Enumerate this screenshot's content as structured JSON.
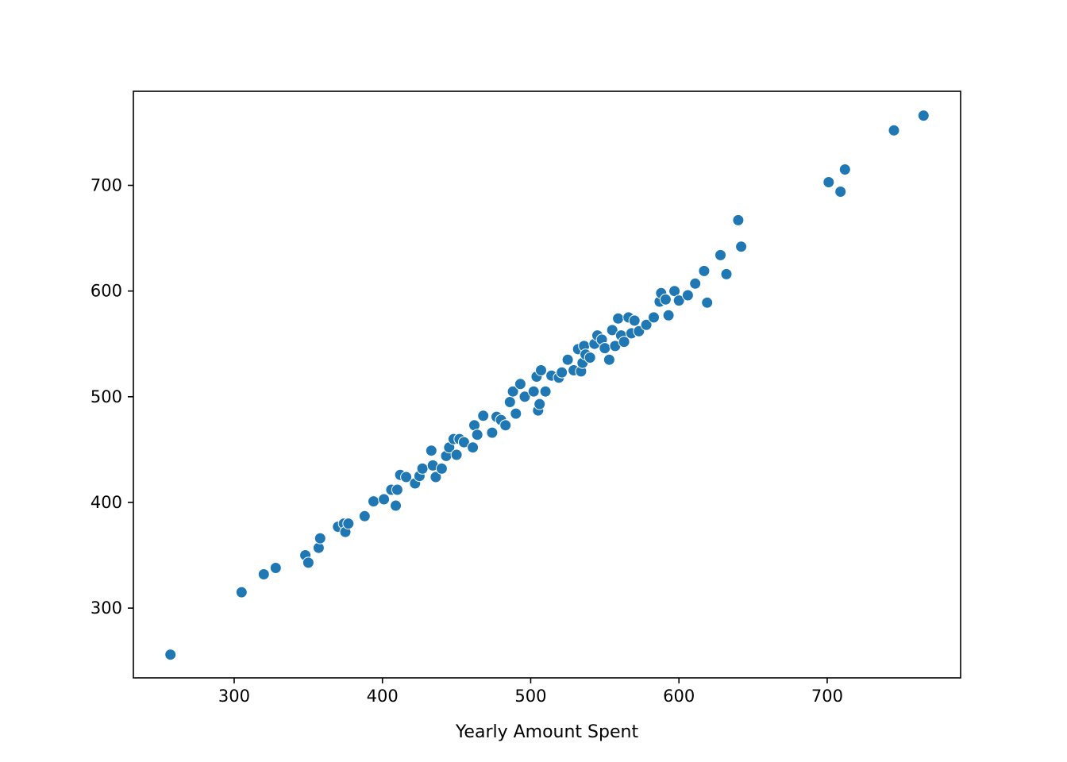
{
  "chart_data": {
    "type": "scatter",
    "title": "",
    "xlabel": "Yearly Amount Spent",
    "ylabel": "",
    "xlim": [
      232,
      790
    ],
    "ylim": [
      234,
      789
    ],
    "xticks": [
      300,
      400,
      500,
      600,
      700
    ],
    "yticks": [
      300,
      400,
      500,
      600,
      700
    ],
    "xtick_labels": [
      "300",
      "400",
      "500",
      "600",
      "700"
    ],
    "ytick_labels": [
      "300",
      "400",
      "500",
      "600",
      "700"
    ],
    "grid": false,
    "legend": "none",
    "marker_color": "#1f77b4",
    "series": [
      {
        "x": [
          257,
          305,
          320,
          328,
          348,
          350,
          357,
          358,
          370,
          374,
          375,
          377,
          388,
          394,
          401,
          406,
          409,
          410,
          412,
          416,
          422,
          425,
          427,
          433,
          434,
          436,
          440,
          443,
          445,
          448,
          450,
          452,
          455,
          461,
          462,
          464,
          468,
          474,
          477,
          480,
          483,
          486,
          488,
          490,
          493,
          496,
          502,
          504,
          505,
          506,
          507,
          510,
          514,
          519,
          521,
          525,
          529,
          532,
          534,
          535,
          536,
          537,
          540,
          543,
          545,
          548,
          550,
          553,
          555,
          557,
          559,
          561,
          563,
          566,
          568,
          570,
          573,
          578,
          583,
          587,
          588,
          591,
          593,
          597,
          600,
          606,
          611,
          617,
          619,
          628,
          632,
          640,
          642,
          701,
          709,
          712,
          745,
          765
        ],
        "y": [
          256,
          315,
          332,
          338,
          350,
          343,
          357,
          366,
          377,
          380,
          372,
          380,
          387,
          401,
          403,
          412,
          397,
          412,
          426,
          424,
          418,
          425,
          432,
          449,
          435,
          424,
          432,
          444,
          452,
          460,
          445,
          460,
          457,
          452,
          473,
          464,
          482,
          466,
          481,
          478,
          473,
          495,
          505,
          484,
          512,
          500,
          505,
          519,
          487,
          493,
          525,
          505,
          520,
          518,
          523,
          535,
          525,
          545,
          524,
          532,
          548,
          540,
          537,
          550,
          558,
          554,
          546,
          535,
          563,
          548,
          574,
          558,
          552,
          575,
          560,
          572,
          562,
          568,
          575,
          590,
          598,
          592,
          577,
          600,
          591,
          596,
          607,
          619,
          589,
          634,
          616,
          667,
          642,
          703,
          694,
          715,
          752,
          766
        ]
      }
    ]
  }
}
